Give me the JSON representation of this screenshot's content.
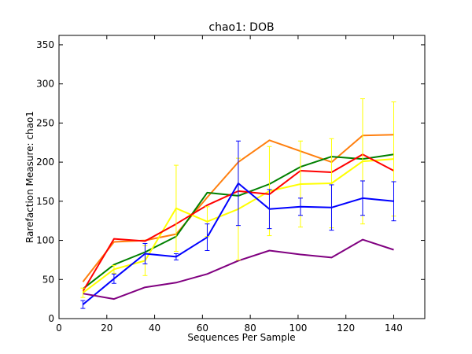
{
  "chart_data": {
    "type": "line",
    "title": "chao1: DOB",
    "xlabel": "Sequences Per Sample",
    "ylabel": "Rarefaction Measure: chao1",
    "xlim": [
      0,
      153
    ],
    "ylim": [
      0,
      362
    ],
    "xticks": [
      0,
      20,
      40,
      60,
      80,
      100,
      120,
      140
    ],
    "yticks": [
      0,
      50,
      100,
      150,
      200,
      250,
      300,
      350
    ],
    "x": [
      10,
      23,
      36,
      49,
      62,
      75,
      88,
      101,
      114,
      127,
      140
    ],
    "grid": false,
    "legend": "none",
    "series": [
      {
        "color": "#ff7f0e",
        "values": [
          47,
          98,
          100,
          108,
          155,
          200,
          228,
          214,
          200,
          234,
          235
        ]
      },
      {
        "color": "#008000",
        "values": [
          38,
          69,
          85,
          105,
          161,
          157,
          172,
          194,
          207,
          204,
          210
        ]
      },
      {
        "color": "#ffff00",
        "values": [
          33,
          63,
          74,
          141,
          124,
          140,
          163,
          172,
          173,
          201,
          204
        ],
        "errors": [
          6,
          5,
          19,
          55,
          19,
          65,
          57,
          55,
          57,
          80,
          73
        ]
      },
      {
        "color": "#ff0000",
        "values": [
          35,
          102,
          99,
          121,
          145,
          163,
          159,
          189,
          187,
          210,
          189
        ]
      },
      {
        "color": "#0000ff",
        "values": [
          18,
          51,
          83,
          79,
          104,
          173,
          140,
          143,
          142,
          154,
          150
        ],
        "errors": [
          5,
          6,
          13,
          4,
          17,
          54,
          25,
          11,
          29,
          22,
          25
        ]
      },
      {
        "color": "#800080",
        "values": [
          32,
          25,
          40,
          46,
          57,
          74,
          87,
          82,
          78,
          101,
          88
        ]
      }
    ]
  }
}
